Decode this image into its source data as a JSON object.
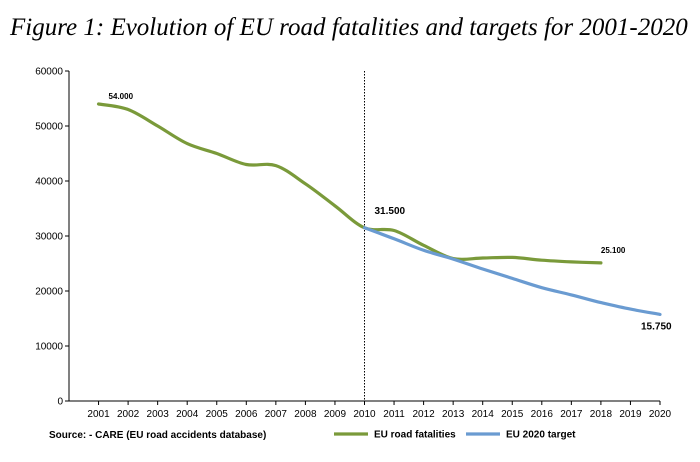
{
  "figure_title": "Figure 1: Evolution of EU road fatalities and targets for 2001-2020",
  "source_note": "Source: - CARE (EU road accidents database)",
  "colors": {
    "fatalities": "#7a9a3a",
    "target": "#6a9bd1",
    "axis": "#000000"
  },
  "chart_data": {
    "type": "line",
    "title": "",
    "xlabel": "",
    "ylabel": "",
    "x": [
      2001,
      2002,
      2003,
      2004,
      2005,
      2006,
      2007,
      2008,
      2009,
      2010,
      2011,
      2012,
      2013,
      2014,
      2015,
      2016,
      2017,
      2018,
      2019,
      2020
    ],
    "ylim": [
      0,
      60000
    ],
    "yticks": [
      0,
      10000,
      20000,
      30000,
      40000,
      50000,
      60000
    ],
    "grid": false,
    "legend_position": "bottom",
    "reference_line_x": 2010,
    "series": [
      {
        "name": "EU road fatalities",
        "x": [
          2001,
          2002,
          2003,
          2004,
          2005,
          2006,
          2007,
          2008,
          2009,
          2010,
          2011,
          2012,
          2013,
          2014,
          2015,
          2016,
          2017,
          2018
        ],
        "values": [
          54000,
          53000,
          50000,
          46800,
          45000,
          43000,
          42800,
          39500,
          35500,
          31500,
          31000,
          28300,
          25900,
          26000,
          26100,
          25600,
          25300,
          25100
        ]
      },
      {
        "name": "EU 2020 target",
        "x": [
          2010,
          2011,
          2012,
          2013,
          2014,
          2015,
          2016,
          2017,
          2018,
          2019,
          2020
        ],
        "values": [
          31500,
          29500,
          27400,
          25800,
          24000,
          22300,
          20600,
          19300,
          17900,
          16700,
          15750
        ]
      }
    ],
    "annotations": [
      {
        "x": 2001,
        "y": 54000,
        "text": "54.000"
      },
      {
        "x": 2010,
        "y": 31500,
        "text": "31.500"
      },
      {
        "x": 2018,
        "y": 25100,
        "text": "25.100"
      },
      {
        "x": 2020,
        "y": 15750,
        "text": "15.750"
      }
    ]
  }
}
